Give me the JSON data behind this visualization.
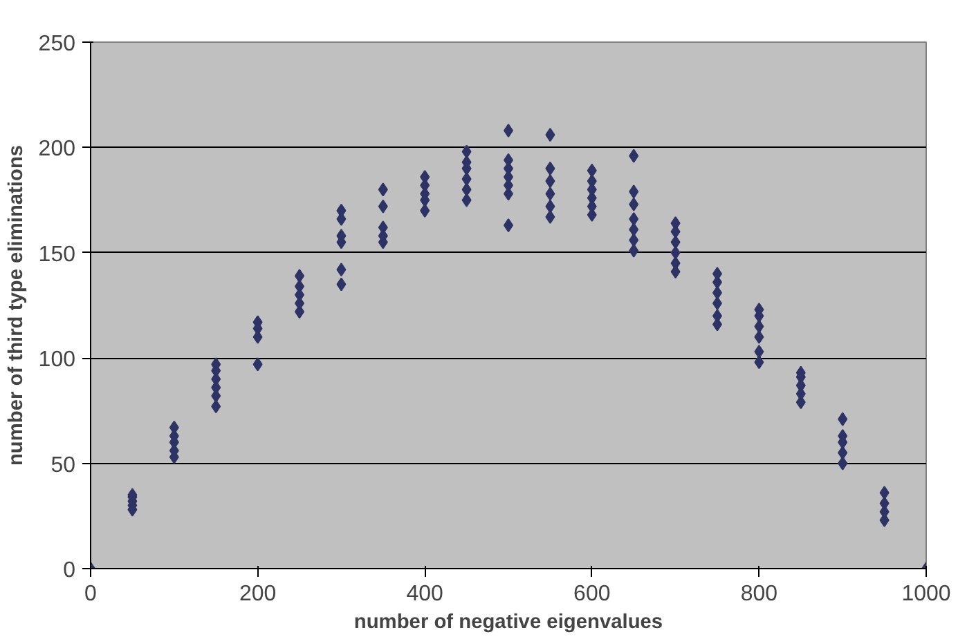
{
  "chart_data": {
    "type": "scatter",
    "xlabel": "number of negative eigenvalues",
    "ylabel": "number of third type eliminations",
    "x": [
      0,
      50,
      50,
      50,
      50,
      50,
      100,
      100,
      100,
      100,
      100,
      150,
      150,
      150,
      150,
      150,
      150,
      200,
      200,
      200,
      200,
      250,
      250,
      250,
      250,
      250,
      300,
      300,
      300,
      300,
      300,
      300,
      350,
      350,
      350,
      350,
      350,
      400,
      400,
      400,
      400,
      400,
      450,
      450,
      450,
      450,
      450,
      450,
      500,
      500,
      500,
      500,
      500,
      500,
      500,
      550,
      550,
      550,
      550,
      550,
      550,
      600,
      600,
      600,
      600,
      600,
      600,
      650,
      650,
      650,
      650,
      650,
      650,
      650,
      700,
      700,
      700,
      700,
      700,
      700,
      750,
      750,
      750,
      750,
      750,
      750,
      800,
      800,
      800,
      800,
      800,
      800,
      850,
      850,
      850,
      850,
      850,
      900,
      900,
      900,
      900,
      900,
      950,
      950,
      950,
      950,
      1000
    ],
    "series": [
      {
        "color": "#2e3366",
        "values": [
          0,
          28,
          30,
          32,
          34,
          35,
          53,
          56,
          60,
          63,
          67,
          77,
          82,
          86,
          90,
          94,
          97,
          97,
          110,
          114,
          117,
          122,
          126,
          130,
          134,
          139,
          135,
          142,
          155,
          158,
          166,
          170,
          155,
          158,
          162,
          172,
          180,
          170,
          175,
          178,
          182,
          186,
          175,
          180,
          185,
          190,
          193,
          198,
          163,
          178,
          182,
          186,
          190,
          194,
          208,
          167,
          172,
          178,
          184,
          190,
          206,
          168,
          172,
          176,
          180,
          184,
          189,
          151,
          156,
          161,
          166,
          173,
          179,
          196,
          141,
          145,
          150,
          155,
          160,
          164,
          116,
          120,
          126,
          131,
          136,
          140,
          98,
          103,
          110,
          115,
          120,
          123,
          79,
          83,
          87,
          91,
          93,
          50,
          55,
          60,
          63,
          71,
          23,
          27,
          31,
          36,
          0
        ]
      }
    ],
    "xlim": [
      0,
      1000
    ],
    "xticks": [
      0,
      200,
      400,
      600,
      800,
      1000
    ],
    "ylim": [
      0,
      250
    ],
    "yticks": [
      0,
      50,
      100,
      150,
      200,
      250
    ],
    "grid": "y",
    "marker": "diamond"
  }
}
